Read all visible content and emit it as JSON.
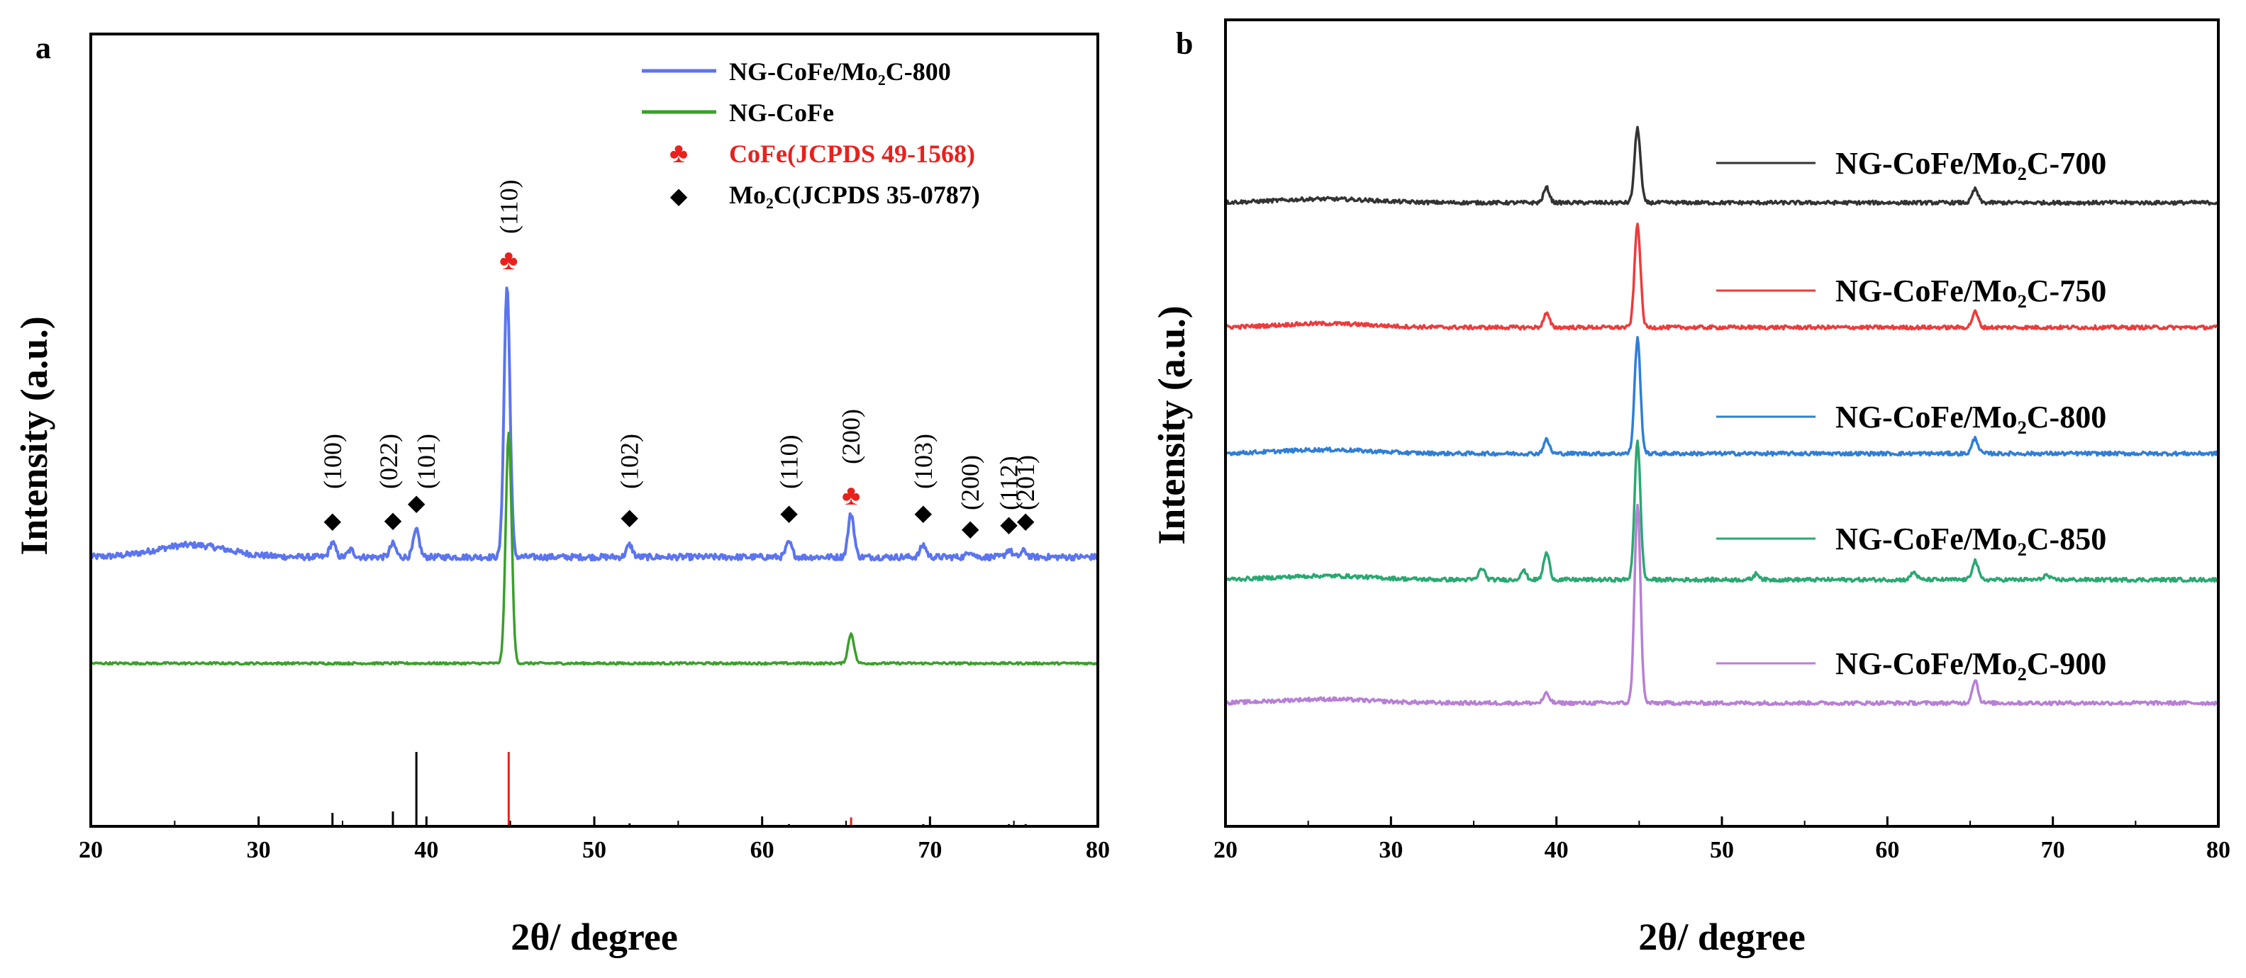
{
  "chart_data": [
    {
      "panel": "a",
      "type": "line",
      "xlabel": "2θ/ degree",
      "ylabel": "Intensity (a.u.)",
      "xlim": [
        20,
        80
      ],
      "xticks": [
        "20",
        "30",
        "40",
        "50",
        "60",
        "70",
        "80"
      ],
      "series": [
        {
          "name": "NG-CoFe/Mo₂C-800",
          "color": "#5b74f0",
          "baseline": 1,
          "hump": {
            "center": 26,
            "height": 0.1,
            "width": 3
          },
          "peaks": [
            {
              "x": 34.4,
              "h": 0.12
            },
            {
              "x": 35.5,
              "h": 0.06
            },
            {
              "x": 38.0,
              "h": 0.11
            },
            {
              "x": 39.4,
              "h": 0.22
            },
            {
              "x": 44.8,
              "h": 2.25
            },
            {
              "x": 52.1,
              "h": 0.1
            },
            {
              "x": 61.6,
              "h": 0.12
            },
            {
              "x": 65.3,
              "h": 0.36
            },
            {
              "x": 69.6,
              "h": 0.1
            },
            {
              "x": 72.4,
              "h": 0.05
            },
            {
              "x": 74.7,
              "h": 0.06
            },
            {
              "x": 75.6,
              "h": 0.05
            }
          ]
        },
        {
          "name": "NG-CoFe",
          "color": "#3aa02a",
          "baseline": 1,
          "hump": {
            "center": 26,
            "height": 0,
            "width": 3
          },
          "peaks": [
            {
              "x": 44.9,
              "h": 3.1
            },
            {
              "x": 65.3,
              "h": 0.4
            }
          ]
        }
      ],
      "references": [
        {
          "name": "CoFe(JCPDS 49-1568)",
          "color": "#e8211d",
          "marker": "♣",
          "lines": [
            {
              "x": 44.9,
              "h": 1.0
            },
            {
              "x": 65.3,
              "h": 0.12
            }
          ]
        },
        {
          "name": "Mo₂C(JCPDS 35-0787)",
          "color": "#000000",
          "marker": "◆",
          "lines": [
            {
              "x": 34.4,
              "h": 0.18
            },
            {
              "x": 38.0,
              "h": 0.2
            },
            {
              "x": 39.4,
              "h": 1.0
            },
            {
              "x": 52.1,
              "h": 0.04
            },
            {
              "x": 61.6,
              "h": 0.03
            },
            {
              "x": 69.6,
              "h": 0.03
            },
            {
              "x": 74.7,
              "h": 0.03
            },
            {
              "x": 75.7,
              "h": 0.03
            }
          ]
        }
      ],
      "annotations": [
        {
          "x": 34.4,
          "marker": "◆",
          "color": "#000000",
          "label": "(100)"
        },
        {
          "x": 38.0,
          "marker": "◆",
          "color": "#000000",
          "label": "(022)"
        },
        {
          "x": 39.4,
          "marker": "◆",
          "color": "#000000",
          "label": "(101)"
        },
        {
          "x": 44.9,
          "marker": "♣",
          "color": "#e8211d",
          "label": "(110)"
        },
        {
          "x": 52.1,
          "marker": "◆",
          "color": "#000000",
          "label": "(102)"
        },
        {
          "x": 61.6,
          "marker": "◆",
          "color": "#000000",
          "label": "(110)"
        },
        {
          "x": 65.3,
          "marker": "♣",
          "color": "#e8211d",
          "label": "(200)"
        },
        {
          "x": 69.6,
          "marker": "◆",
          "color": "#000000",
          "label": "(103)"
        },
        {
          "x": 72.4,
          "marker": "◆",
          "color": "#000000",
          "label": "(200)"
        },
        {
          "x": 74.7,
          "marker": "◆",
          "color": "#000000",
          "label": "(112)"
        },
        {
          "x": 75.7,
          "marker": "◆",
          "color": "#000000",
          "label": "(201)"
        }
      ],
      "legend": [
        {
          "label": "NG-CoFe/Mo₂C-800",
          "color": "#5b74f0",
          "kind": "line"
        },
        {
          "label": "NG-CoFe",
          "color": "#3aa02a",
          "kind": "line"
        },
        {
          "label": "CoFe(JCPDS 49-1568)",
          "color": "#e8211d",
          "kind": "marker",
          "marker": "♣"
        },
        {
          "label": "Mo₂C(JCPDS 35-0787)",
          "color": "#000000",
          "kind": "marker",
          "marker": "◆"
        }
      ],
      "legend_position": "top-right"
    },
    {
      "panel": "b",
      "type": "line",
      "xlabel": "2θ/ degree",
      "ylabel": "Intensity (a.u.)",
      "xlim": [
        20,
        80
      ],
      "xticks": [
        "20",
        "30",
        "40",
        "50",
        "60",
        "70",
        "80"
      ],
      "series": [
        {
          "name": "NG-CoFe/Mo₂C-700",
          "color": "#333333",
          "baseline": 1,
          "peaks": [
            {
              "x": 39.4,
              "h": 0.2
            },
            {
              "x": 44.9,
              "h": 1.0
            },
            {
              "x": 65.3,
              "h": 0.18
            }
          ]
        },
        {
          "name": "NG-CoFe/Mo₂C-750",
          "color": "#ee3b3b",
          "baseline": 1,
          "peaks": [
            {
              "x": 39.4,
              "h": 0.18
            },
            {
              "x": 44.9,
              "h": 1.35
            },
            {
              "x": 65.3,
              "h": 0.2
            }
          ]
        },
        {
          "name": "NG-CoFe/Mo₂C-800",
          "color": "#2f7ed8",
          "baseline": 1,
          "peaks": [
            {
              "x": 39.4,
              "h": 0.18
            },
            {
              "x": 44.9,
              "h": 1.5
            },
            {
              "x": 65.3,
              "h": 0.2
            }
          ]
        },
        {
          "name": "NG-CoFe/Mo₂C-850",
          "color": "#2aa872",
          "baseline": 1,
          "peaks": [
            {
              "x": 35.5,
              "h": 0.15
            },
            {
              "x": 38.0,
              "h": 0.12
            },
            {
              "x": 39.4,
              "h": 0.35
            },
            {
              "x": 44.9,
              "h": 1.8
            },
            {
              "x": 52.1,
              "h": 0.08
            },
            {
              "x": 61.6,
              "h": 0.1
            },
            {
              "x": 65.3,
              "h": 0.25
            },
            {
              "x": 69.6,
              "h": 0.06
            }
          ]
        },
        {
          "name": "NG-CoFe/Mo₂C-900",
          "color": "#b77fd6",
          "baseline": 1,
          "peaks": [
            {
              "x": 39.4,
              "h": 0.12
            },
            {
              "x": 44.9,
              "h": 2.6
            },
            {
              "x": 65.3,
              "h": 0.3
            }
          ]
        }
      ],
      "legend": [
        {
          "label": "NG-CoFe/Mo₂C-700",
          "color": "#333333"
        },
        {
          "label": "NG-CoFe/Mo₂C-750",
          "color": "#ee3b3b"
        },
        {
          "label": "NG-CoFe/Mo₂C-800",
          "color": "#2f7ed8"
        },
        {
          "label": "NG-CoFe/Mo₂C-850",
          "color": "#2aa872"
        },
        {
          "label": "NG-CoFe/Mo₂C-900",
          "color": "#b77fd6"
        }
      ],
      "legend_position": "right, beside each trace"
    }
  ],
  "panel_labels": {
    "a": "a",
    "b": "b"
  }
}
